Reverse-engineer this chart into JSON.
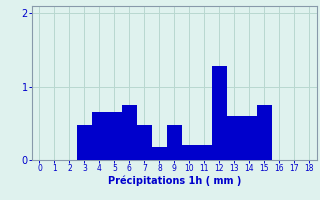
{
  "categories": [
    0,
    1,
    2,
    3,
    4,
    5,
    6,
    7,
    8,
    9,
    10,
    11,
    12,
    13,
    14,
    15,
    16,
    17,
    18
  ],
  "values": [
    0,
    0,
    0,
    0.48,
    0.65,
    0.65,
    0.75,
    0.48,
    0.18,
    0.48,
    0.2,
    0.2,
    1.28,
    0.6,
    0.6,
    0.75,
    0,
    0,
    0
  ],
  "bar_color": "#0000cc",
  "background_color": "#dff2ee",
  "grid_color": "#b8d8d0",
  "xlabel": "Précipitations 1h ( mm )",
  "xlabel_color": "#0000cc",
  "tick_color": "#0000cc",
  "spine_color": "#8899aa",
  "ylim": [
    0,
    2.1
  ],
  "yticks": [
    0,
    1,
    2
  ],
  "xticks": [
    0,
    1,
    2,
    3,
    4,
    5,
    6,
    7,
    8,
    9,
    10,
    11,
    12,
    13,
    14,
    15,
    16,
    17,
    18
  ],
  "xlim": [
    -0.5,
    18.5
  ],
  "bar_width": 1.0,
  "figsize": [
    3.2,
    2.0
  ],
  "dpi": 100
}
